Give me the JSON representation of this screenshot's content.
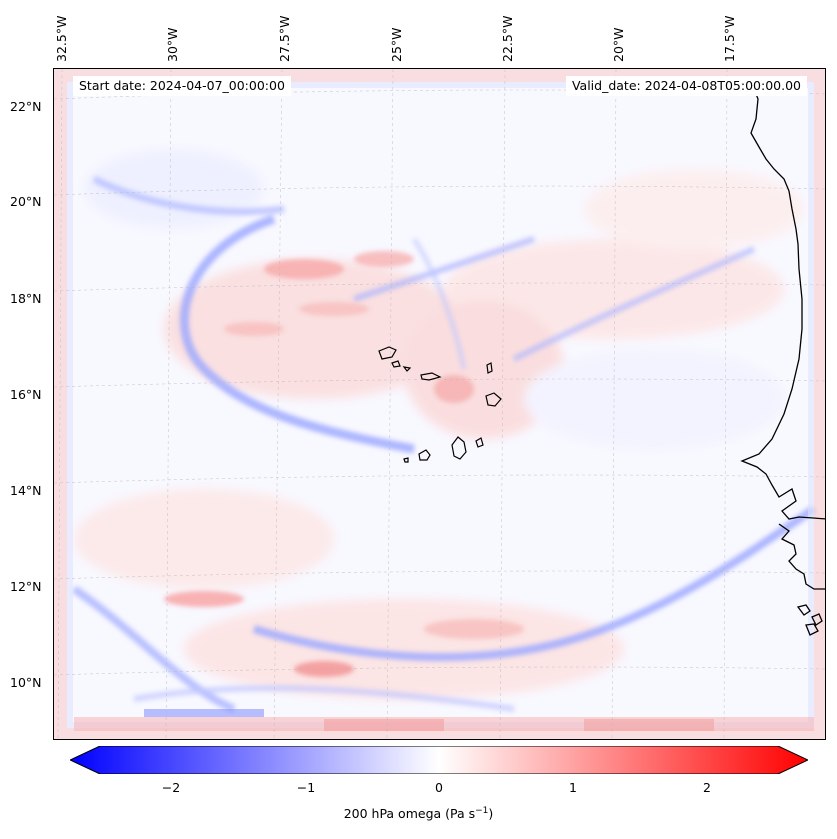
{
  "annotations": {
    "start_date": "Start date: 2024-04-07_00:00:00",
    "valid_date": "Valid_date: 2024-04-08T05:00:00.00"
  },
  "longitude_labels": [
    "32.5°W",
    "30°W",
    "27.5°W",
    "25°W",
    "22.5°W",
    "20°W",
    "17.5°W"
  ],
  "latitude_labels": [
    "22°N",
    "20°N",
    "18°N",
    "16°N",
    "14°N",
    "12°N",
    "10°N"
  ],
  "colorbar": {
    "ticks": [
      "−2",
      "−1",
      "0",
      "1",
      "2"
    ],
    "range": [
      -2.6,
      2.6
    ],
    "label_prefix": "200 hPa omega (Pa s",
    "label_superscript": "−1",
    "label_suffix": ")",
    "colors": {
      "min": "#0000ff",
      "mid": "#ffffff",
      "max": "#ff0000"
    }
  },
  "map": {
    "projection": "lambert-like, west Africa / Cape Verde region",
    "features": [
      "Cape Verde islands",
      "West African coastline (Senegal, Gambia, Guinea-Bissau)"
    ],
    "gridlines": true
  }
}
